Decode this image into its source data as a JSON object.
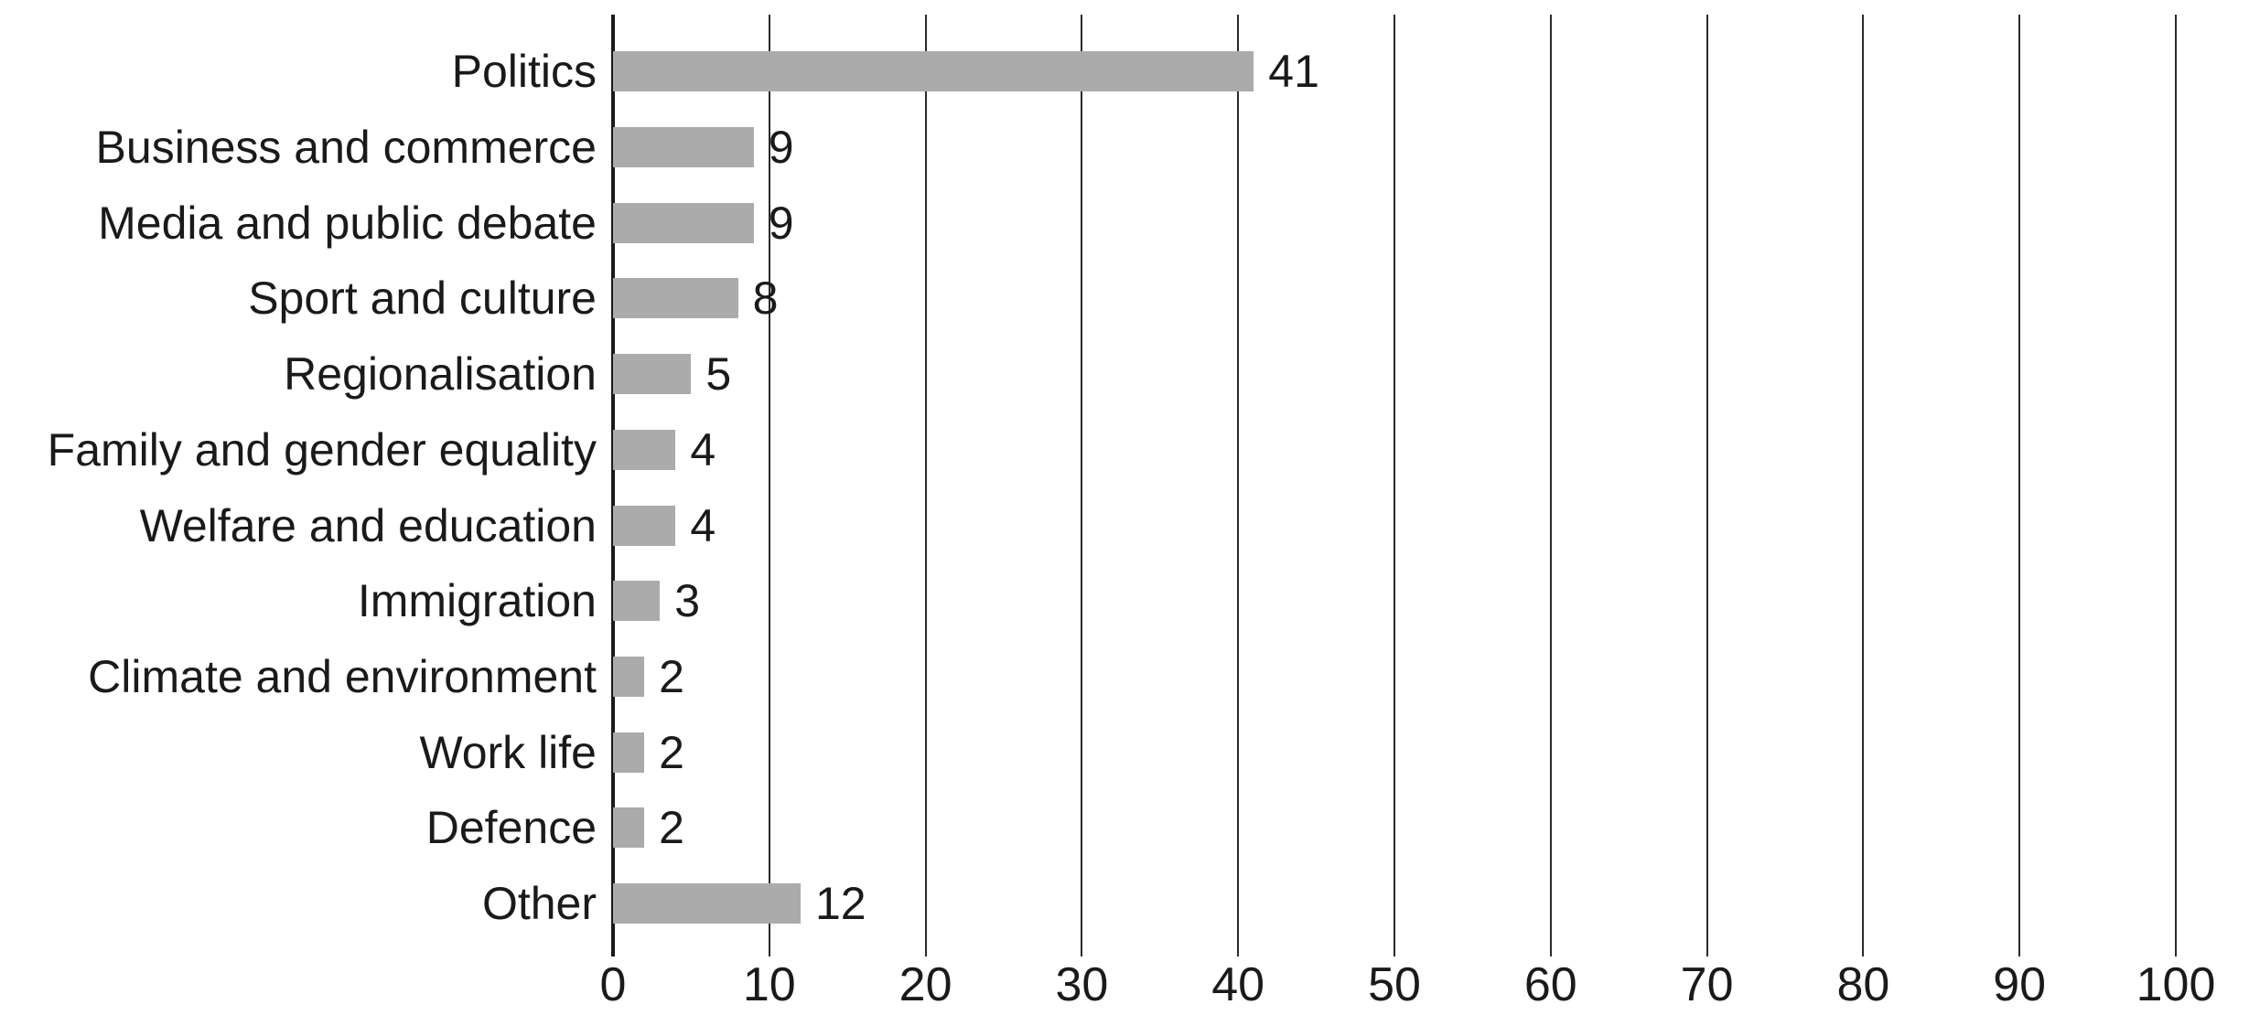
{
  "chart_data": {
    "type": "bar",
    "orientation": "horizontal",
    "title": "",
    "xlabel": "",
    "ylabel": "",
    "categories": [
      "Politics",
      "Business and commerce",
      "Media and public debate",
      "Sport and culture",
      "Regionalisation",
      "Family and gender equality",
      "Welfare and education",
      "Immigration",
      "Climate and environment",
      "Work life",
      "Defence",
      "Other"
    ],
    "values": [
      41,
      9,
      9,
      8,
      5,
      4,
      4,
      3,
      2,
      2,
      2,
      12
    ],
    "value_labels": [
      "41",
      "9",
      "9",
      "8",
      "5",
      "4",
      "4",
      "3",
      "2",
      "2",
      "2",
      "12"
    ],
    "xlim": [
      0,
      100
    ],
    "xticks": [
      0,
      10,
      20,
      30,
      40,
      50,
      60,
      70,
      80,
      90,
      100
    ],
    "xtick_labels": [
      "0",
      "10",
      "20",
      "30",
      "40",
      "50",
      "60",
      "70",
      "80",
      "90",
      "100"
    ],
    "grid": true,
    "legend": null,
    "colors": {
      "bar": "#ababab",
      "axis": "#1a1a1a",
      "gridline": "#2a2a2a",
      "text": "#1a1a1a",
      "background": "#ffffff"
    }
  }
}
